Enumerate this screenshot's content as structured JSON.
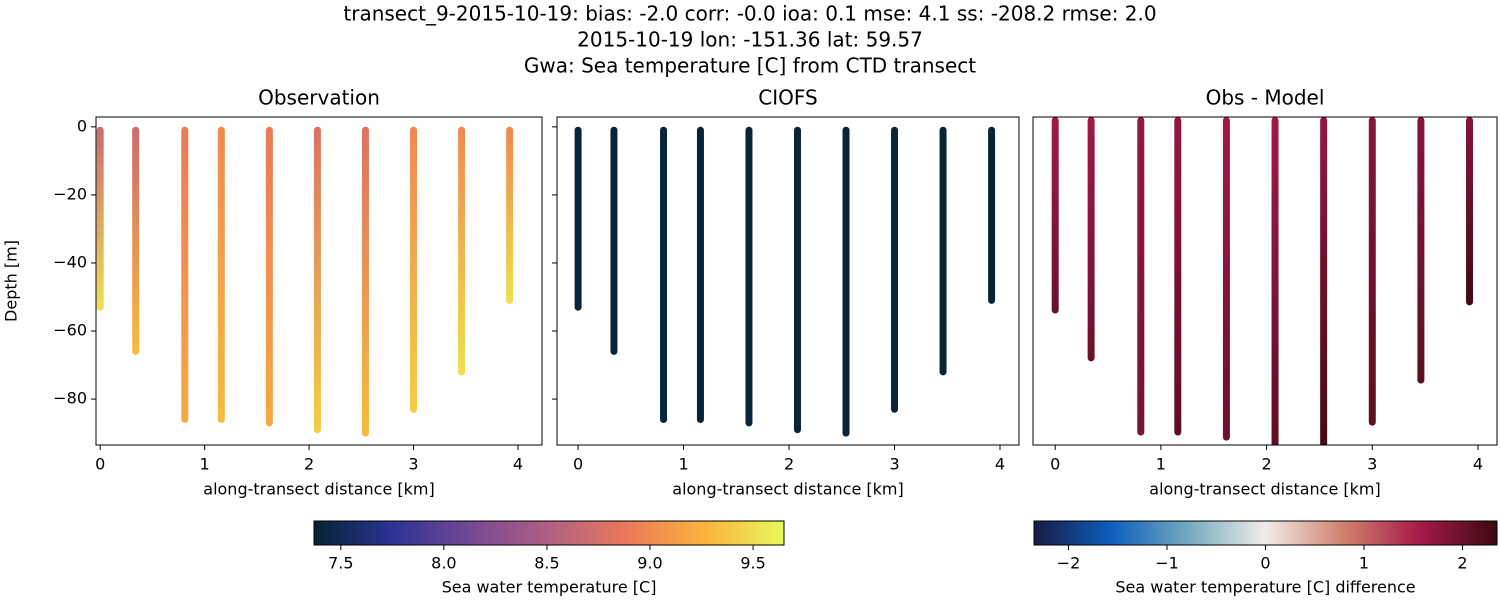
{
  "suptitle": [
    "transect_9-2015-10-19: bias: -2.0  corr: -0.0  ioa: 0.1  mse: 4.1  ss: -208.2  rmse: 2.0",
    "2015-10-19 lon: -151.36 lat: 59.57",
    "Gwa: Sea temperature [C] from CTD transect"
  ],
  "chart_data": [
    {
      "type": "scatter",
      "title": "Observation",
      "xlabel": "along-transect distance [km]",
      "ylabel": "Depth [m]",
      "colorbar": 0,
      "xlim": [
        -0.04,
        4.23
      ],
      "ylim": [
        -93.5,
        2.9
      ],
      "xticks": [
        0,
        1,
        2,
        3,
        4
      ],
      "yticks": [
        0,
        {
          "value": -20,
          "label": "−20"
        },
        {
          "value": -40,
          "label": "−40"
        },
        {
          "value": -60,
          "label": "−60"
        },
        {
          "value": -80,
          "label": "−80"
        }
      ],
      "x": [
        0,
        0.34,
        0.81,
        1.16,
        1.62,
        2.08,
        2.54,
        3.0,
        3.46,
        3.92
      ],
      "top": [
        -1,
        -1,
        -1,
        -1,
        -1,
        -1,
        -1,
        -1,
        -1,
        -1
      ],
      "bottom": [
        -53,
        -66,
        -86,
        -86,
        -87,
        -89,
        -90,
        -83,
        -72,
        -51
      ],
      "top_values": [
        8.7,
        8.7,
        8.9,
        9.0,
        8.9,
        8.8,
        8.8,
        9.0,
        9.0,
        9.0
      ],
      "bottom_values": [
        9.5,
        9.3,
        9.2,
        9.3,
        9.2,
        9.4,
        9.3,
        9.4,
        9.5,
        9.5
      ]
    },
    {
      "type": "scatter",
      "title": "CIOFS",
      "xlabel": "along-transect distance [km]",
      "colorbar": 0,
      "xlim": [
        -0.2,
        4.18
      ],
      "ylim": [
        -93.5,
        2.9
      ],
      "xticks": [
        0,
        1,
        2,
        3,
        4
      ],
      "x": [
        0,
        0.34,
        0.81,
        1.16,
        1.62,
        2.08,
        2.54,
        3.0,
        3.46,
        3.92
      ],
      "top": [
        -1,
        -1,
        -1,
        -1,
        -1,
        -1,
        -1,
        -1,
        -1,
        -1
      ],
      "bottom": [
        -53,
        -66,
        -86,
        -86,
        -87,
        -89,
        -90,
        -83,
        -72,
        -51
      ],
      "top_values": [
        7.4,
        7.4,
        7.4,
        7.4,
        7.4,
        7.4,
        7.4,
        7.4,
        7.4,
        7.4
      ],
      "bottom_values": [
        7.4,
        7.4,
        7.4,
        7.4,
        7.4,
        7.4,
        7.4,
        7.4,
        7.4,
        7.4
      ]
    },
    {
      "type": "scatter",
      "title": "Obs - Model",
      "xlabel": "along-transect distance [km]",
      "colorbar": 1,
      "xlim": [
        -0.21,
        4.18
      ],
      "ylim": [
        -96,
        0
      ],
      "xticks": [
        0,
        1,
        2,
        3,
        4
      ],
      "x": [
        0,
        0.34,
        0.81,
        1.16,
        1.62,
        2.08,
        2.54,
        3.0,
        3.46,
        3.92
      ],
      "top": [
        -1,
        -1,
        -1,
        -1,
        -1,
        -1,
        -1,
        -1,
        -1,
        -1
      ],
      "bottom": [
        -56.5,
        -70.5,
        -92.2,
        -92.2,
        -93.7,
        -96,
        -96.6,
        -89.3,
        -77,
        -54.1
      ],
      "top_values": [
        1.6,
        1.6,
        1.7,
        1.7,
        1.6,
        1.6,
        1.7,
        1.8,
        1.8,
        1.8
      ],
      "bottom_values": [
        2.0,
        2.0,
        1.9,
        2.1,
        2.0,
        2.1,
        2.3,
        2.1,
        2.1,
        2.3
      ]
    }
  ],
  "colorbars": [
    {
      "label": "Sea water temperature [C]",
      "lim": [
        7.37,
        9.65
      ],
      "ticks": [
        7.5,
        {
          "value": 8.0,
          "label": "8.0"
        },
        8.5,
        {
          "value": 9.0,
          "label": "9.0"
        },
        9.5
      ],
      "colors": [
        "#042333",
        "#2c3395",
        "#744992",
        "#b15f82",
        "#eb7958",
        "#fbb43d",
        "#e8fa5b"
      ]
    },
    {
      "label": "Sea water temperature [C] difference",
      "lim": [
        -2.35,
        2.35
      ],
      "ticks": [
        {
          "value": -2,
          "label": "−2"
        },
        {
          "value": -1,
          "label": "−1"
        },
        0,
        1,
        2
      ],
      "colors": [
        "#181c43",
        "#0c5ebe",
        "#75aabe",
        "#f1ecea",
        "#d0826c",
        "#a51a49",
        "#3c0911"
      ]
    }
  ]
}
